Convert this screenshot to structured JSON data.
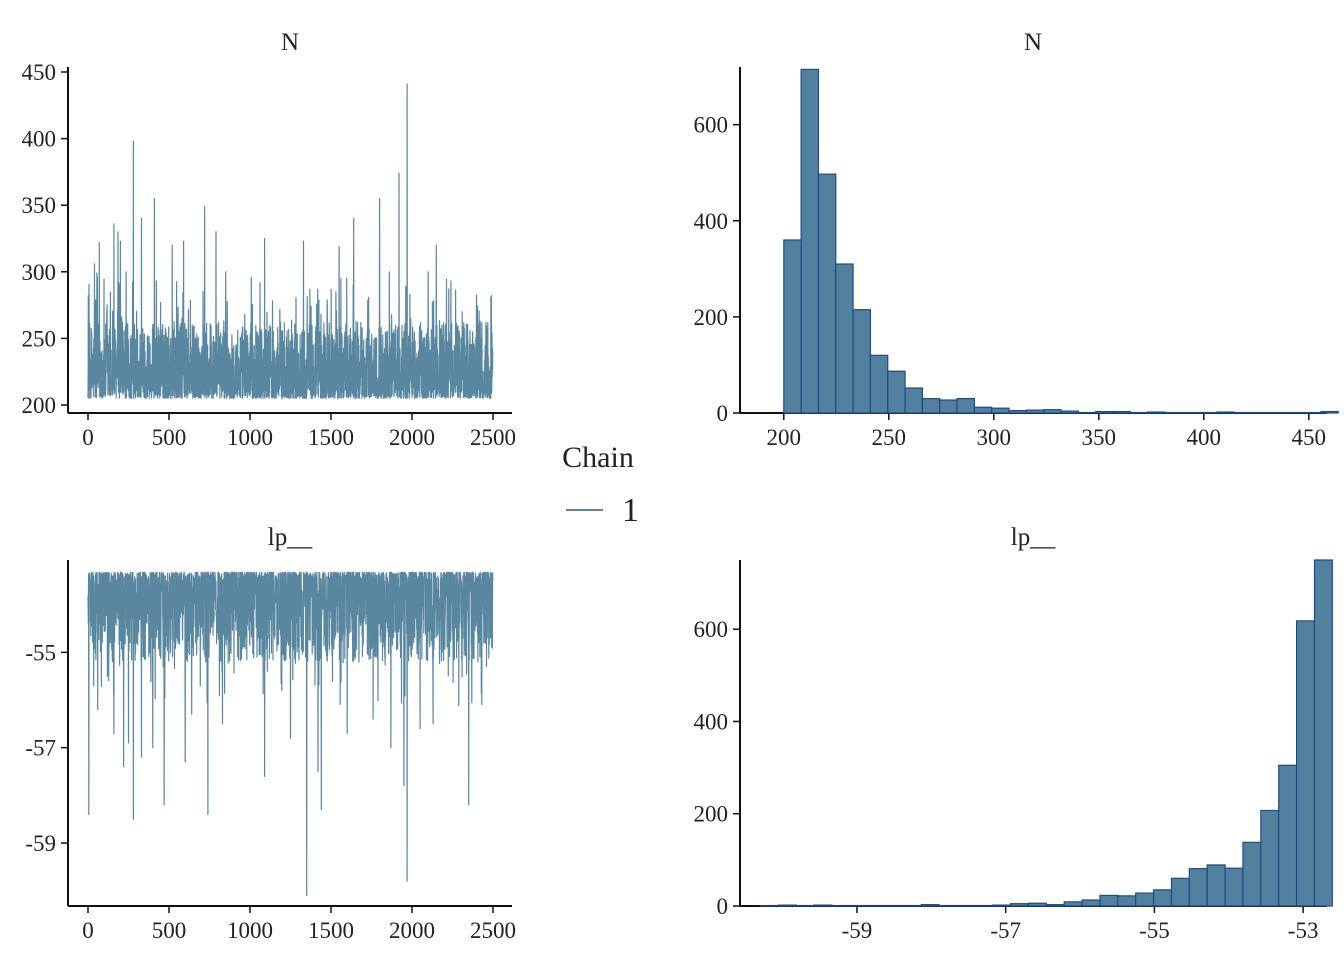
{
  "legend": {
    "title": "Chain",
    "items": [
      {
        "label": "1",
        "color": "#5a87a0"
      }
    ]
  },
  "colors": {
    "trace_line": "#5a87a0",
    "hist_fill": "#52809f",
    "hist_stroke": "#1e4b86",
    "axis": "#111111"
  },
  "chart_data": [
    {
      "type": "line",
      "title": "N",
      "xlabel": "",
      "ylabel": "",
      "xlim": [
        0,
        2500
      ],
      "ylim": [
        200,
        450
      ],
      "x_ticks": [
        0,
        500,
        1000,
        1500,
        2000,
        2500
      ],
      "y_ticks": [
        200,
        250,
        300,
        350,
        400,
        450
      ],
      "series": [
        {
          "name": "1",
          "n_iterations": 2500,
          "baseline_range": [
            205,
            262
          ],
          "spikes": [
            [
              40,
              306
            ],
            [
              55,
              299
            ],
            [
              70,
              322
            ],
            [
              160,
              336
            ],
            [
              185,
              330
            ],
            [
              200,
              323
            ],
            [
              235,
              300
            ],
            [
              280,
              398
            ],
            [
              330,
              340
            ],
            [
              410,
              355
            ],
            [
              520,
              320
            ],
            [
              590,
              323
            ],
            [
              720,
              349
            ],
            [
              790,
              330
            ],
            [
              850,
              300
            ],
            [
              1090,
              325
            ],
            [
              1330,
              323
            ],
            [
              1550,
              319
            ],
            [
              1640,
              340
            ],
            [
              1800,
              355
            ],
            [
              1860,
              300
            ],
            [
              1920,
              374
            ],
            [
              1970,
              441
            ],
            [
              2100,
              300
            ],
            [
              2150,
              320
            ],
            [
              2240,
              293
            ],
            [
              2310,
              270
            ],
            [
              2490,
              282
            ]
          ]
        }
      ]
    },
    {
      "type": "bar",
      "title": "N",
      "xlabel": "",
      "ylabel": "",
      "xlim": [
        192,
        452
      ],
      "ylim": [
        0,
        720
      ],
      "x_ticks": [
        200,
        250,
        300,
        350,
        400,
        450
      ],
      "y_ticks": [
        0,
        200,
        400,
        600
      ],
      "bin_start": 200,
      "bin_width": 8.25,
      "values": [
        360,
        715,
        497,
        310,
        215,
        120,
        87,
        52,
        30,
        27,
        30,
        12,
        10,
        5,
        6,
        7,
        4,
        1,
        3,
        3,
        1,
        2,
        1,
        1,
        1,
        2,
        1,
        1,
        1,
        1,
        1,
        3
      ]
    },
    {
      "type": "line",
      "title": "lp__",
      "xlabel": "",
      "ylabel": "",
      "xlim": [
        0,
        2500
      ],
      "ylim": [
        -60.3,
        -53.0
      ],
      "x_ticks": [
        0,
        500,
        1000,
        1500,
        2000,
        2500
      ],
      "y_ticks": [
        -59,
        -57,
        -55
      ],
      "series": [
        {
          "name": "1",
          "n_iterations": 2500,
          "upper_bound": -53.32,
          "baseline_range": [
            -55.2,
            -53.32
          ],
          "dips": [
            [
              5,
              -58.4
            ],
            [
              35,
              -55.7
            ],
            [
              60,
              -56.2
            ],
            [
              120,
              -55.5
            ],
            [
              160,
              -56.7
            ],
            [
              220,
              -57.4
            ],
            [
              250,
              -56.9
            ],
            [
              280,
              -58.5
            ],
            [
              330,
              -57.2
            ],
            [
              400,
              -57.0
            ],
            [
              470,
              -58.2
            ],
            [
              600,
              -57.3
            ],
            [
              640,
              -56.3
            ],
            [
              740,
              -58.4
            ],
            [
              830,
              -56.5
            ],
            [
              1090,
              -57.6
            ],
            [
              1250,
              -56.8
            ],
            [
              1350,
              -60.1
            ],
            [
              1420,
              -57.5
            ],
            [
              1440,
              -58.3
            ],
            [
              1600,
              -56.7
            ],
            [
              1760,
              -56.4
            ],
            [
              1870,
              -57.0
            ],
            [
              1950,
              -57.8
            ],
            [
              1970,
              -59.8
            ],
            [
              2050,
              -56.6
            ],
            [
              2130,
              -56.5
            ],
            [
              2350,
              -58.2
            ],
            [
              2460,
              -55.3
            ]
          ]
        }
      ]
    },
    {
      "type": "bar",
      "title": "lp__",
      "xlabel": "",
      "ylabel": "",
      "xlim": [
        -60.6,
        -52.8
      ],
      "ylim": [
        0,
        750
      ],
      "x_ticks": [
        -59,
        -57,
        -55,
        -53
      ],
      "y_ticks": [
        0,
        200,
        400,
        600
      ],
      "bin_start": -60.3,
      "bin_width": 0.2404,
      "values": [
        1,
        2,
        1,
        2,
        1,
        1,
        1,
        1,
        1,
        3,
        1,
        1,
        1,
        2,
        5,
        6,
        3,
        9,
        13,
        23,
        22,
        28,
        35,
        60,
        81,
        89,
        82,
        138,
        207,
        305,
        618,
        750
      ]
    }
  ]
}
